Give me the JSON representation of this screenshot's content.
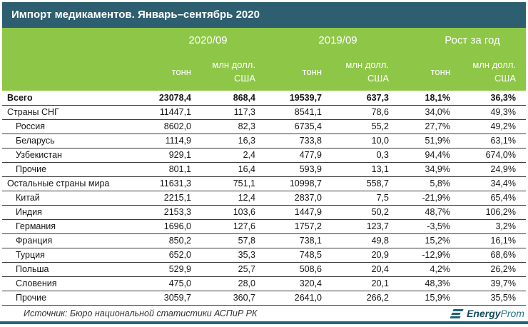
{
  "title_bar": "Импорт медикаментов. Январь–сентябрь 2020",
  "header": {
    "groups": [
      "2020/09",
      "2019/09",
      "Рост за год"
    ],
    "sub_headers": {
      "tons": "тонн",
      "usd_line1": "млн долл.",
      "usd_line2": "США"
    }
  },
  "footer": {
    "source": "Источник: Бюро национальной статистики АСПиР РК",
    "logo_bold": "Energy",
    "logo_light": "Prom"
  },
  "colors": {
    "title_bar_bg": "#2d5f70",
    "header_green_bg": "#8ec748",
    "row_border": "#3b3b3b",
    "bottom_bar": "#1c6a7c",
    "logo_teal": "#1b6276",
    "logo_dark": "#11495c"
  },
  "chart_data": {
    "type": "table",
    "title": "Импорт медикаментов. Январь–сентябрь 2020",
    "column_groups": [
      "2020/09",
      "2019/09",
      "Рост за год"
    ],
    "columns": [
      "2020/09 тонн",
      "2020/09 млн долл. США",
      "2019/09 тонн",
      "2019/09 млн долл. США",
      "Рост за год тонн",
      "Рост за год млн долл. США"
    ],
    "rows": [
      {
        "label": "Всего",
        "bold": true,
        "indent": false,
        "values": [
          "23078,4",
          "868,4",
          "19539,7",
          "637,3",
          "18,1%",
          "36,3%"
        ]
      },
      {
        "label": "Страны СНГ",
        "bold": false,
        "indent": false,
        "values": [
          "11447,1",
          "117,3",
          "8541,1",
          "78,6",
          "34,0%",
          "49,3%"
        ]
      },
      {
        "label": "Россия",
        "bold": false,
        "indent": true,
        "values": [
          "8602,0",
          "82,3",
          "6735,4",
          "55,2",
          "27,7%",
          "49,2%"
        ]
      },
      {
        "label": "Беларусь",
        "bold": false,
        "indent": true,
        "values": [
          "1114,9",
          "16,3",
          "733,8",
          "10,0",
          "51,9%",
          "63,1%"
        ]
      },
      {
        "label": "Узбекистан",
        "bold": false,
        "indent": true,
        "values": [
          "929,1",
          "2,4",
          "477,9",
          "0,3",
          "94,4%",
          "674,0%"
        ]
      },
      {
        "label": "Прочие",
        "bold": false,
        "indent": true,
        "values": [
          "801,1",
          "16,4",
          "593,9",
          "13,1",
          "34,9%",
          "24,9%"
        ]
      },
      {
        "label": "Остальные страны мира",
        "bold": false,
        "indent": false,
        "values": [
          "11631,3",
          "751,1",
          "10998,7",
          "558,7",
          "5,8%",
          "34,4%"
        ]
      },
      {
        "label": "Китай",
        "bold": false,
        "indent": true,
        "values": [
          "2215,1",
          "12,4",
          "2837,0",
          "7,5",
          "-21,9%",
          "65,4%"
        ]
      },
      {
        "label": "Индия",
        "bold": false,
        "indent": true,
        "values": [
          "2153,3",
          "103,6",
          "1447,9",
          "50,2",
          "48,7%",
          "106,2%"
        ]
      },
      {
        "label": "Германия",
        "bold": false,
        "indent": true,
        "values": [
          "1696,0",
          "127,6",
          "1757,2",
          "123,7",
          "-3,5%",
          "3,2%"
        ]
      },
      {
        "label": "Франция",
        "bold": false,
        "indent": true,
        "values": [
          "850,2",
          "57,8",
          "738,1",
          "49,8",
          "15,2%",
          "16,1%"
        ]
      },
      {
        "label": "Турция",
        "bold": false,
        "indent": true,
        "values": [
          "652,0",
          "35,3",
          "748,5",
          "20,9",
          "-12,9%",
          "68,6%"
        ]
      },
      {
        "label": "Польша",
        "bold": false,
        "indent": true,
        "values": [
          "529,9",
          "25,7",
          "508,6",
          "20,4",
          "4,2%",
          "26,2%"
        ]
      },
      {
        "label": "Словения",
        "bold": false,
        "indent": true,
        "values": [
          "475,0",
          "28,0",
          "320,4",
          "20,1",
          "48,3%",
          "39,7%"
        ]
      },
      {
        "label": "Прочие",
        "bold": false,
        "indent": true,
        "values": [
          "3059,7",
          "360,7",
          "2641,0",
          "266,2",
          "15,9%",
          "35,5%"
        ]
      }
    ]
  }
}
